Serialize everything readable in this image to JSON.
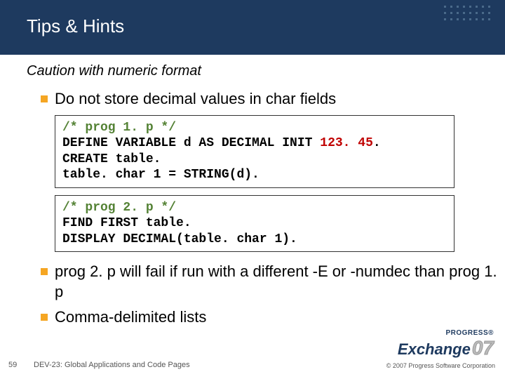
{
  "colors": {
    "header_bg": "#1e3a5f",
    "bullet": "#f5a623",
    "comment": "#548235",
    "number": "#c00000",
    "text": "#000000",
    "footer_text": "#555555"
  },
  "header": {
    "title": "Tips & Hints"
  },
  "subtitle": "Caution with numeric format",
  "bullets": {
    "b1": "Do not store decimal values in char fields",
    "b2": "prog 2. p will fail if run with a different -E or -numdec than prog 1. p",
    "b3": "Comma-delimited lists"
  },
  "code1": {
    "comment": "/* prog 1. p */",
    "line2a": "DEFINE VARIABLE d AS DECIMAL INIT ",
    "line2b": "123. 45",
    "line2c": ".",
    "line3": "CREATE table.",
    "line4": "table. char 1 = STRING(d)."
  },
  "code2": {
    "comment": "/* prog 2. p */",
    "line2": "FIND FIRST table.",
    "line3": "DISPLAY DECIMAL(table. char 1)."
  },
  "footer": {
    "page": "59",
    "title": "DEV-23: Global Applications and Code Pages",
    "copyright": "© 2007 Progress Software Corporation"
  },
  "logo": {
    "top": "PROGRESS®",
    "main": "Exchange",
    "year": "07"
  }
}
